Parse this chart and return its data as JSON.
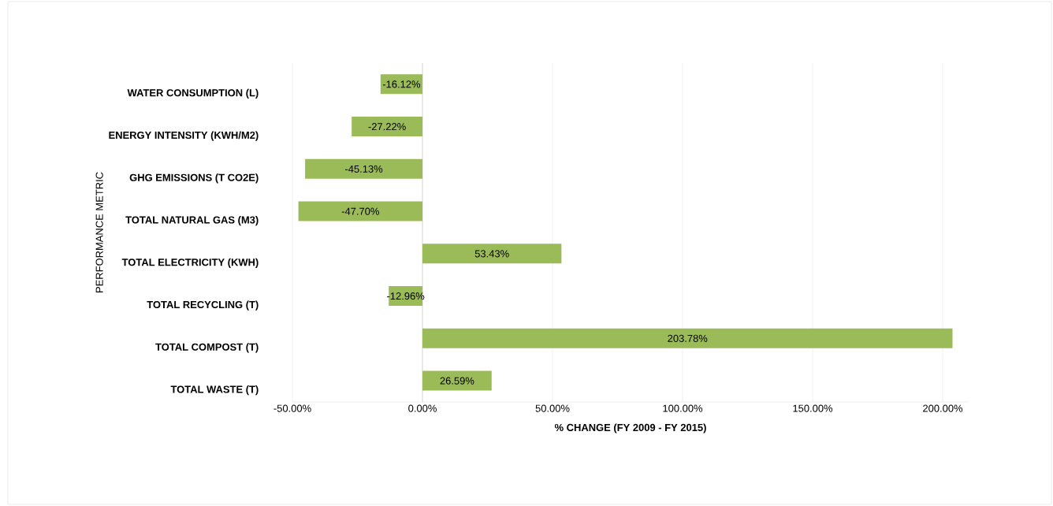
{
  "chart_data": {
    "type": "bar",
    "orientation": "horizontal",
    "xlabel": "% CHANGE (FY 2009 - FY 2015)",
    "ylabel": "PERFORMANCE METRIC",
    "categories": [
      "WATER CONSUMPTION (L)",
      "ENERGY INTENSITY (KWH/M2)",
      "GHG EMISSIONS (T CO2E)",
      "TOTAL NATURAL GAS (M3)",
      "TOTAL ELECTRICITY (KWH)",
      "TOTAL RECYCLING (T)",
      "TOTAL COMPOST (T)",
      "TOTAL WASTE (T)"
    ],
    "values": [
      -16.12,
      -27.22,
      -45.13,
      -47.7,
      53.43,
      -12.96,
      203.78,
      26.59
    ],
    "value_labels": [
      "-16.12%",
      "-27.22%",
      "-45.13%",
      "-47.70%",
      "53.43%",
      "-12.96%",
      "203.78%",
      "26.59%"
    ],
    "color": "#9bbb59",
    "xlim": [
      -50,
      210
    ],
    "xticks": [
      {
        "value": -50,
        "label": "-50.00%"
      },
      {
        "value": 0,
        "label": "0.00%"
      },
      {
        "value": 50,
        "label": "50.00%"
      },
      {
        "value": 100,
        "label": "100.00%"
      },
      {
        "value": 150,
        "label": "150.00%"
      },
      {
        "value": 200,
        "label": "200.00%"
      }
    ],
    "grid": "x"
  }
}
